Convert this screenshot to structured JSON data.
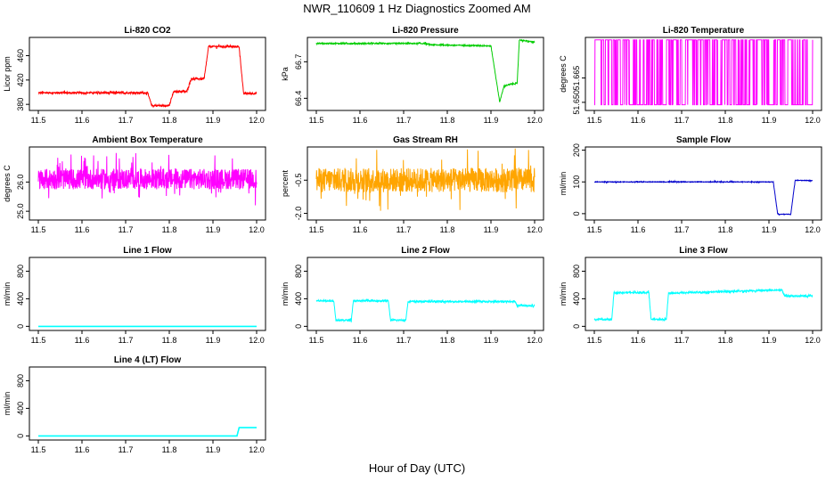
{
  "figure": {
    "title": "NWR_110609  1 Hz Diagnostics Zoomed AM",
    "xlabel": "Hour of Day (UTC)"
  },
  "chart_data": [
    {
      "type": "line",
      "title": "Li-820 CO2",
      "ylabel": "Licor ppm",
      "color": "#ff0000",
      "xlim": [
        11.5,
        12.0
      ],
      "ylim": [
        370,
        490
      ],
      "xticks": [
        "11.5",
        "11.6",
        "11.7",
        "11.8",
        "11.9",
        "12.0"
      ],
      "yticks": [
        "380",
        "420",
        "460"
      ],
      "noise": 1.5,
      "x": [
        11.5,
        11.75,
        11.76,
        11.8,
        11.81,
        11.84,
        11.85,
        11.88,
        11.89,
        11.96,
        11.97,
        12.0
      ],
      "y": [
        399,
        399,
        378,
        378,
        401,
        401,
        422,
        422,
        475,
        475,
        398,
        398
      ]
    },
    {
      "type": "line",
      "title": "Li-820 Pressure",
      "ylabel": "kPa",
      "color": "#00cc00",
      "xlim": [
        11.5,
        12.0
      ],
      "ylim": [
        66.3,
        66.9
      ],
      "xticks": [
        "11.5",
        "11.6",
        "11.7",
        "11.8",
        "11.9",
        "12.0"
      ],
      "yticks": [
        "66.4",
        "66.7"
      ],
      "noise": 0.005,
      "x": [
        11.5,
        11.75,
        11.76,
        11.9,
        11.92,
        11.93,
        11.95,
        11.96,
        11.965,
        12.0
      ],
      "y": [
        66.85,
        66.85,
        66.84,
        66.83,
        66.37,
        66.5,
        66.52,
        66.52,
        66.88,
        66.86
      ]
    },
    {
      "type": "line",
      "title": "Li-820 Temperature",
      "ylabel": "degrees C",
      "color": "#ff00ff",
      "xlim": [
        11.5,
        12.0
      ],
      "ylim": [
        51.645,
        51.69
      ],
      "xticks": [
        "11.5",
        "11.6",
        "11.7",
        "11.8",
        "11.9",
        "12.0"
      ],
      "yticks": [
        "51.650",
        "51.665"
      ],
      "noise": 0,
      "low": 51.6485,
      "high": 51.6885,
      "x": [
        11.5,
        12.0
      ],
      "y": [
        51.6485,
        51.6485
      ]
    },
    {
      "type": "line",
      "title": "Ambient Box Temperature",
      "ylabel": "degrees C",
      "color": "#ff00ff",
      "xlim": [
        11.5,
        12.0
      ],
      "ylim": [
        24.7,
        27.2
      ],
      "xticks": [
        "11.5",
        "11.6",
        "11.7",
        "11.8",
        "11.9",
        "12.0"
      ],
      "yticks": [
        "25.0",
        "26.0"
      ],
      "noise": 0.35,
      "x": [
        11.5,
        12.0
      ],
      "y": [
        26.1,
        26.1
      ]
    },
    {
      "type": "line",
      "title": "Gas Stream RH",
      "ylabel": "percent",
      "color": "#ffa500",
      "xlim": [
        11.5,
        12.0
      ],
      "ylim": [
        -2.3,
        1.0
      ],
      "xticks": [
        "11.5",
        "11.6",
        "11.7",
        "11.8",
        "11.9",
        "12.0"
      ],
      "yticks": [
        "-2.0",
        "-0.5"
      ],
      "noise": 0.55,
      "x": [
        11.5,
        12.0
      ],
      "y": [
        -0.5,
        -0.5
      ]
    },
    {
      "type": "line",
      "title": "Sample Flow",
      "ylabel": "ml/min",
      "color": "#0000cc",
      "xlim": [
        11.5,
        12.0
      ],
      "ylim": [
        -20,
        210
      ],
      "xticks": [
        "11.5",
        "11.6",
        "11.7",
        "11.8",
        "11.9",
        "12.0"
      ],
      "yticks": [
        "0",
        "100",
        "200"
      ],
      "noise": 1,
      "x": [
        11.5,
        11.91,
        11.92,
        11.95,
        11.96,
        12.0
      ],
      "y": [
        100,
        100,
        -2,
        -2,
        105,
        104
      ]
    },
    {
      "type": "line",
      "title": "Line 1 Flow",
      "ylabel": "ml/min",
      "color": "#00ffff",
      "xlim": [
        11.5,
        12.0
      ],
      "ylim": [
        -60,
        1000
      ],
      "xticks": [
        "11.5",
        "11.6",
        "11.7",
        "11.8",
        "11.9",
        "12.0"
      ],
      "yticks": [
        "0",
        "400",
        "800"
      ],
      "noise": 0,
      "x": [
        11.5,
        12.0
      ],
      "y": [
        0,
        0
      ]
    },
    {
      "type": "line",
      "title": "Line 2 Flow",
      "ylabel": "ml/min",
      "color": "#00ffff",
      "xlim": [
        11.5,
        12.0
      ],
      "ylim": [
        -60,
        1000
      ],
      "xticks": [
        "11.5",
        "11.6",
        "11.7",
        "11.8",
        "11.9",
        "12.0"
      ],
      "yticks": [
        "0",
        "400",
        "800"
      ],
      "noise": 12,
      "x": [
        11.5,
        11.54,
        11.545,
        11.58,
        11.585,
        11.665,
        11.67,
        11.705,
        11.71,
        11.955,
        11.96,
        12.0
      ],
      "y": [
        370,
        370,
        90,
        90,
        370,
        370,
        90,
        90,
        360,
        360,
        300,
        300
      ]
    },
    {
      "type": "line",
      "title": "Line 3 Flow",
      "ylabel": "ml/min",
      "color": "#00ffff",
      "xlim": [
        11.5,
        12.0
      ],
      "ylim": [
        -60,
        1000
      ],
      "xticks": [
        "11.5",
        "11.6",
        "11.7",
        "11.8",
        "11.9",
        "12.0"
      ],
      "yticks": [
        "0",
        "400",
        "800"
      ],
      "noise": 12,
      "x": [
        11.5,
        11.54,
        11.545,
        11.625,
        11.63,
        11.665,
        11.67,
        11.93,
        11.935,
        12.0
      ],
      "y": [
        100,
        100,
        490,
        490,
        100,
        100,
        480,
        530,
        440,
        440
      ]
    },
    {
      "type": "line",
      "title": "Line 4 (LT) Flow",
      "ylabel": "ml/min",
      "color": "#00ffff",
      "xlim": [
        11.5,
        12.0
      ],
      "ylim": [
        -60,
        1000
      ],
      "xticks": [
        "11.5",
        "11.6",
        "11.7",
        "11.8",
        "11.9",
        "12.0"
      ],
      "yticks": [
        "0",
        "400",
        "800"
      ],
      "noise": 0,
      "x": [
        11.5,
        11.955,
        11.96,
        12.0
      ],
      "y": [
        0,
        0,
        120,
        120
      ]
    }
  ]
}
